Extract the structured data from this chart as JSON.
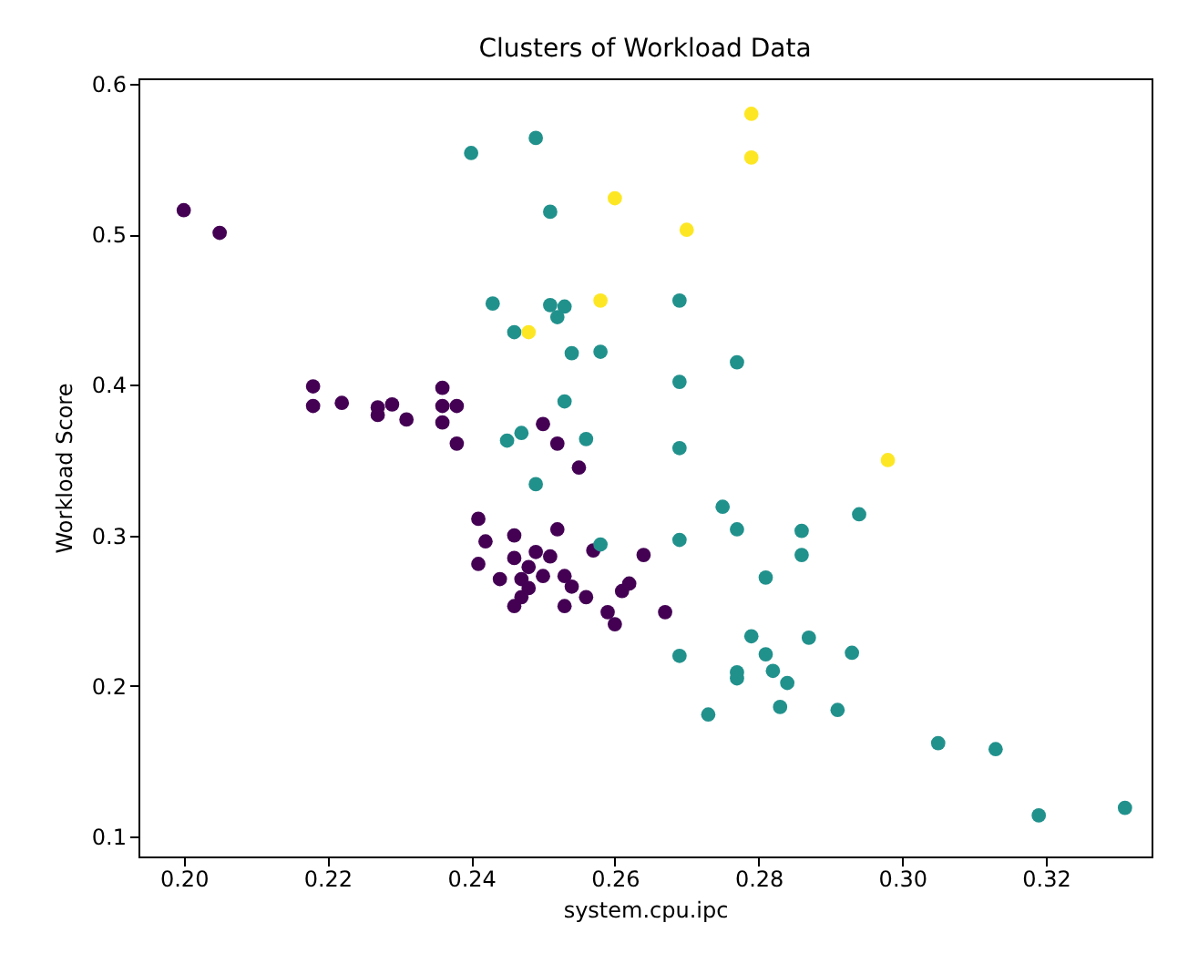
{
  "chart_data": {
    "type": "scatter",
    "title": "Clusters of Workload Data",
    "xlabel": "system.cpu.ipc",
    "ylabel": "Workload Score",
    "xlim": [
      0.1937,
      0.3347
    ],
    "ylim": [
      0.0867,
      0.6036
    ],
    "xticks": [
      {
        "value": 0.2,
        "label": "0.20"
      },
      {
        "value": 0.22,
        "label": "0.22"
      },
      {
        "value": 0.24,
        "label": "0.24"
      },
      {
        "value": 0.26,
        "label": "0.26"
      },
      {
        "value": 0.28,
        "label": "0.28"
      },
      {
        "value": 0.3,
        "label": "0.30"
      },
      {
        "value": 0.32,
        "label": "0.32"
      }
    ],
    "yticks": [
      0.1,
      0.2,
      0.3,
      0.4,
      0.5,
      0.6
    ],
    "grid": false,
    "legend": false,
    "marker": "circle",
    "series": [
      {
        "color": "#440154",
        "x": [
          0.2,
          0.205,
          0.218,
          0.218,
          0.222,
          0.227,
          0.227,
          0.229,
          0.231,
          0.236,
          0.236,
          0.238,
          0.236,
          0.238,
          0.255,
          0.241,
          0.242,
          0.241,
          0.244,
          0.246,
          0.246,
          0.252,
          0.249,
          0.251,
          0.248,
          0.25,
          0.247,
          0.247,
          0.246,
          0.248,
          0.253,
          0.254,
          0.256,
          0.253,
          0.257,
          0.259,
          0.26,
          0.261,
          0.262,
          0.264,
          0.267,
          0.25,
          0.252
        ],
        "values": [
          0.516,
          0.501,
          0.399,
          0.386,
          0.388,
          0.385,
          0.38,
          0.387,
          0.377,
          0.398,
          0.386,
          0.386,
          0.375,
          0.361,
          0.345,
          0.311,
          0.296,
          0.281,
          0.271,
          0.3,
          0.285,
          0.304,
          0.289,
          0.286,
          0.279,
          0.273,
          0.271,
          0.259,
          0.253,
          0.265,
          0.273,
          0.266,
          0.259,
          0.253,
          0.29,
          0.249,
          0.241,
          0.263,
          0.268,
          0.287,
          0.249,
          0.374,
          0.361
        ]
      },
      {
        "color": "#21918c",
        "x": [
          0.24,
          0.249,
          0.251,
          0.243,
          0.251,
          0.253,
          0.252,
          0.246,
          0.254,
          0.258,
          0.269,
          0.269,
          0.277,
          0.253,
          0.245,
          0.247,
          0.256,
          0.269,
          0.249,
          0.258,
          0.269,
          0.275,
          0.277,
          0.286,
          0.286,
          0.281,
          0.287,
          0.279,
          0.281,
          0.282,
          0.284,
          0.277,
          0.277,
          0.269,
          0.273,
          0.283,
          0.294,
          0.293,
          0.291,
          0.305,
          0.313,
          0.319,
          0.331
        ],
        "values": [
          0.554,
          0.564,
          0.515,
          0.454,
          0.453,
          0.452,
          0.445,
          0.435,
          0.421,
          0.422,
          0.456,
          0.402,
          0.415,
          0.389,
          0.363,
          0.368,
          0.364,
          0.358,
          0.334,
          0.294,
          0.297,
          0.319,
          0.304,
          0.303,
          0.287,
          0.272,
          0.232,
          0.233,
          0.221,
          0.21,
          0.202,
          0.209,
          0.205,
          0.22,
          0.181,
          0.186,
          0.314,
          0.222,
          0.184,
          0.162,
          0.158,
          0.114,
          0.119
        ]
      },
      {
        "color": "#fde725",
        "x": [
          0.279,
          0.279,
          0.26,
          0.27,
          0.258,
          0.248,
          0.298
        ],
        "values": [
          0.58,
          0.551,
          0.524,
          0.503,
          0.456,
          0.435,
          0.35
        ]
      }
    ]
  }
}
